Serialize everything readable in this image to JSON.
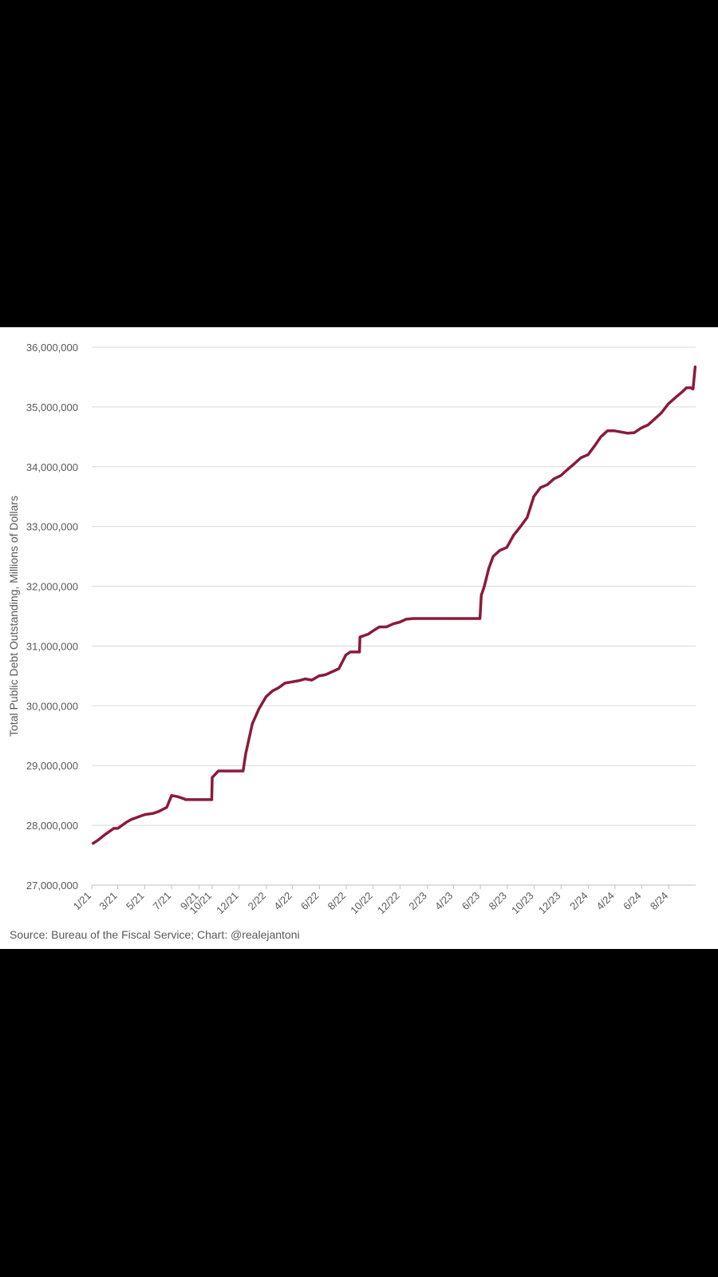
{
  "colors": {
    "line": "#8b1a3a",
    "grid": "#d9d9d9",
    "text": "#595959",
    "background": "#ffffff",
    "frame": "#000000"
  },
  "source_note": "Source: Bureau of the Fiscal Service; Chart: @realejantoni",
  "chart_data": {
    "type": "line",
    "title": "",
    "ylabel": "Total Public Debt Outstanding, Millions of Dollars",
    "xlabel": "",
    "ylim": [
      27000000,
      36000000
    ],
    "xlim": [
      "2021-01-01",
      "2024-10-01"
    ],
    "grid": true,
    "yticks": [
      27000000,
      28000000,
      29000000,
      30000000,
      31000000,
      32000000,
      33000000,
      34000000,
      35000000,
      36000000
    ],
    "ytick_labels": [
      "27,000,000",
      "28,000,000",
      "29,000,000",
      "30,000,000",
      "31,000,000",
      "32,000,000",
      "33,000,000",
      "34,000,000",
      "35,000,000",
      "36,000,000"
    ],
    "xticks": [
      "2021-01-01",
      "2021-03-01",
      "2021-05-01",
      "2021-07-01",
      "2021-09-01",
      "2021-10-01",
      "2021-12-01",
      "2022-02-01",
      "2022-04-01",
      "2022-06-01",
      "2022-08-01",
      "2022-10-01",
      "2022-12-01",
      "2023-02-01",
      "2023-04-01",
      "2023-06-01",
      "2023-08-01",
      "2023-10-01",
      "2023-12-01",
      "2024-02-01",
      "2024-04-01",
      "2024-06-01",
      "2024-08-01"
    ],
    "xtick_labels": [
      "1/21",
      "3/21",
      "5/21",
      "7/21",
      "9/21",
      "10/21",
      "12/21",
      "2/22",
      "4/22",
      "6/22",
      "8/22",
      "10/22",
      "12/22",
      "2/23",
      "4/23",
      "6/23",
      "8/23",
      "10/23",
      "12/23",
      "2/24",
      "4/24",
      "6/24",
      "8/24"
    ],
    "series": [
      {
        "x": [
          "2021-01-04",
          "2021-01-15",
          "2021-02-01",
          "2021-02-20",
          "2021-03-01",
          "2021-03-20",
          "2021-04-01",
          "2021-04-20",
          "2021-05-01",
          "2021-05-20",
          "2021-06-01",
          "2021-06-20",
          "2021-07-01",
          "2021-07-15",
          "2021-07-31",
          "2021-08-01",
          "2021-09-30",
          "2021-10-01",
          "2021-10-15",
          "2021-12-10",
          "2021-12-16",
          "2021-12-31",
          "2022-01-15",
          "2022-01-31",
          "2022-02-15",
          "2022-02-28",
          "2022-03-15",
          "2022-03-31",
          "2022-04-15",
          "2022-04-30",
          "2022-05-15",
          "2022-05-31",
          "2022-06-15",
          "2022-06-30",
          "2022-07-15",
          "2022-07-31",
          "2022-08-10",
          "2022-08-31",
          "2022-09-01",
          "2022-09-20",
          "2022-09-30",
          "2022-10-15",
          "2022-10-31",
          "2022-11-15",
          "2022-11-30",
          "2022-12-15",
          "2022-12-31",
          "2023-01-19",
          "2023-02-28",
          "2023-03-31",
          "2023-04-30",
          "2023-05-31",
          "2023-06-03",
          "2023-06-10",
          "2023-06-20",
          "2023-06-30",
          "2023-07-15",
          "2023-07-31",
          "2023-08-15",
          "2023-08-31",
          "2023-09-15",
          "2023-09-30",
          "2023-10-05",
          "2023-10-15",
          "2023-10-31",
          "2023-11-15",
          "2023-11-30",
          "2023-12-15",
          "2023-12-31",
          "2024-01-15",
          "2024-01-31",
          "2024-02-15",
          "2024-02-29",
          "2024-03-15",
          "2024-03-31",
          "2024-04-15",
          "2024-04-30",
          "2024-05-15",
          "2024-05-31",
          "2024-06-15",
          "2024-06-30",
          "2024-07-15",
          "2024-07-31",
          "2024-08-15",
          "2024-08-31",
          "2024-09-10",
          "2024-09-20",
          "2024-09-25",
          "2024-09-30"
        ],
        "y": [
          27700000,
          27750000,
          27850000,
          27950000,
          27950000,
          28050000,
          28100000,
          28150000,
          28180000,
          28200000,
          28230000,
          28300000,
          28500000,
          28480000,
          28440000,
          28430000,
          28430000,
          28800000,
          28910000,
          28910000,
          29200000,
          29700000,
          29950000,
          30150000,
          30250000,
          30300000,
          30380000,
          30400000,
          30420000,
          30450000,
          30430000,
          30500000,
          30520000,
          30570000,
          30620000,
          30850000,
          30900000,
          30900000,
          31150000,
          31200000,
          31250000,
          31320000,
          31320000,
          31370000,
          31400000,
          31450000,
          31460000,
          31460000,
          31460000,
          31460000,
          31460000,
          31460000,
          31850000,
          32000000,
          32300000,
          32500000,
          32600000,
          32650000,
          32850000,
          33000000,
          33150000,
          33500000,
          33550000,
          33650000,
          33700000,
          33800000,
          33850000,
          33950000,
          34050000,
          34150000,
          34200000,
          34350000,
          34500000,
          34600000,
          34600000,
          34580000,
          34560000,
          34570000,
          34650000,
          34700000,
          34800000,
          34900000,
          35050000,
          35150000,
          35250000,
          35320000,
          35320000,
          35300000,
          35670000
        ]
      }
    ]
  }
}
